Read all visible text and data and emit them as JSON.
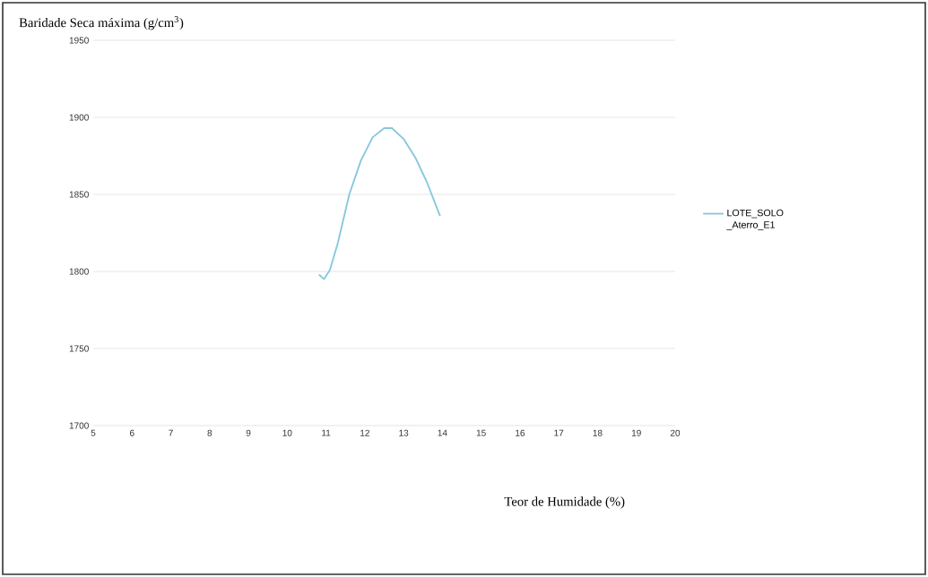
{
  "chart_data": {
    "type": "line",
    "ylabel": "Baridade Seca máxima (g/cm$^{3}$)",
    "xlabel": "Teor de Humidade (%)",
    "series": [
      {
        "name": "LOTE_SOLO _Aterro_E1",
        "color": "#86c8de",
        "x": [
          10.82,
          10.95,
          11.1,
          11.3,
          11.6,
          11.9,
          12.2,
          12.5,
          12.7,
          13.0,
          13.3,
          13.6,
          13.94
        ],
        "values": [
          1798,
          1795,
          1801,
          1818,
          1850,
          1872,
          1887,
          1893,
          1893,
          1886,
          1874,
          1858,
          1836
        ]
      }
    ],
    "xlim": [
      5,
      20
    ],
    "xticks": [
      5,
      6,
      7,
      8,
      9,
      10,
      11,
      12,
      13,
      14,
      15,
      16,
      17,
      18,
      19,
      20
    ],
    "ylim": [
      1700,
      1950
    ],
    "yticks": [
      1700,
      1750,
      1800,
      1850,
      1900,
      1950
    ],
    "grid": "y",
    "legend": "right",
    "marker": "none",
    "line_style": "solid"
  }
}
